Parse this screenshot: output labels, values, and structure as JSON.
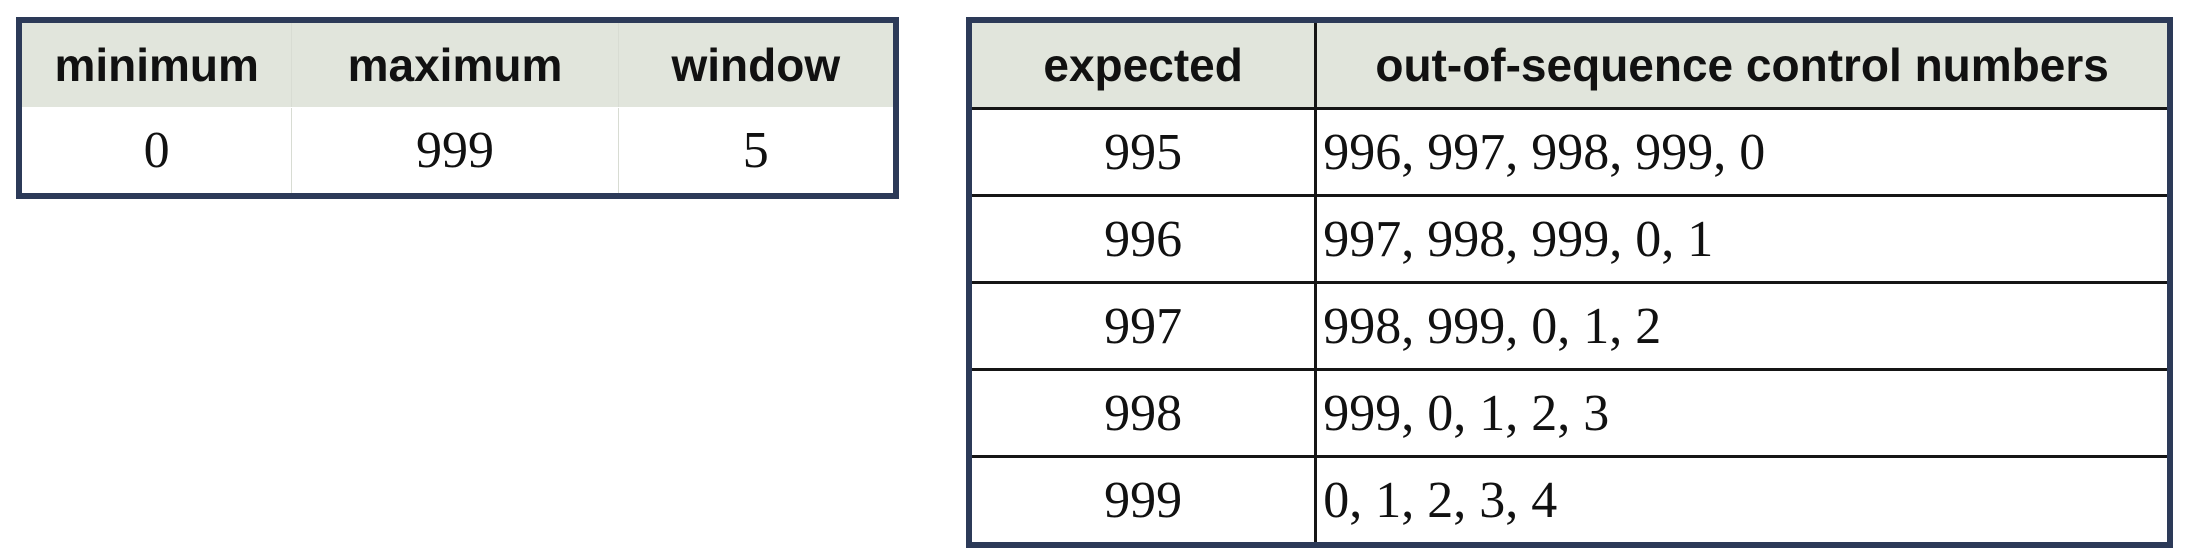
{
  "params_table": {
    "headers": [
      "minimum",
      "maximum",
      "window"
    ],
    "row": [
      "0",
      "999",
      "5"
    ]
  },
  "sequence_table": {
    "headers": [
      "expected",
      "out-of-sequence control numbers"
    ],
    "rows": [
      {
        "expected": "995",
        "numbers": "996, 997, 998, 999, 0"
      },
      {
        "expected": "996",
        "numbers": "997, 998, 999, 0, 1"
      },
      {
        "expected": "997",
        "numbers": "998, 999, 0, 1, 2"
      },
      {
        "expected": "998",
        "numbers": "999, 0, 1, 2, 3"
      },
      {
        "expected": "999",
        "numbers": "0, 1, 2, 3, 4"
      }
    ]
  }
}
